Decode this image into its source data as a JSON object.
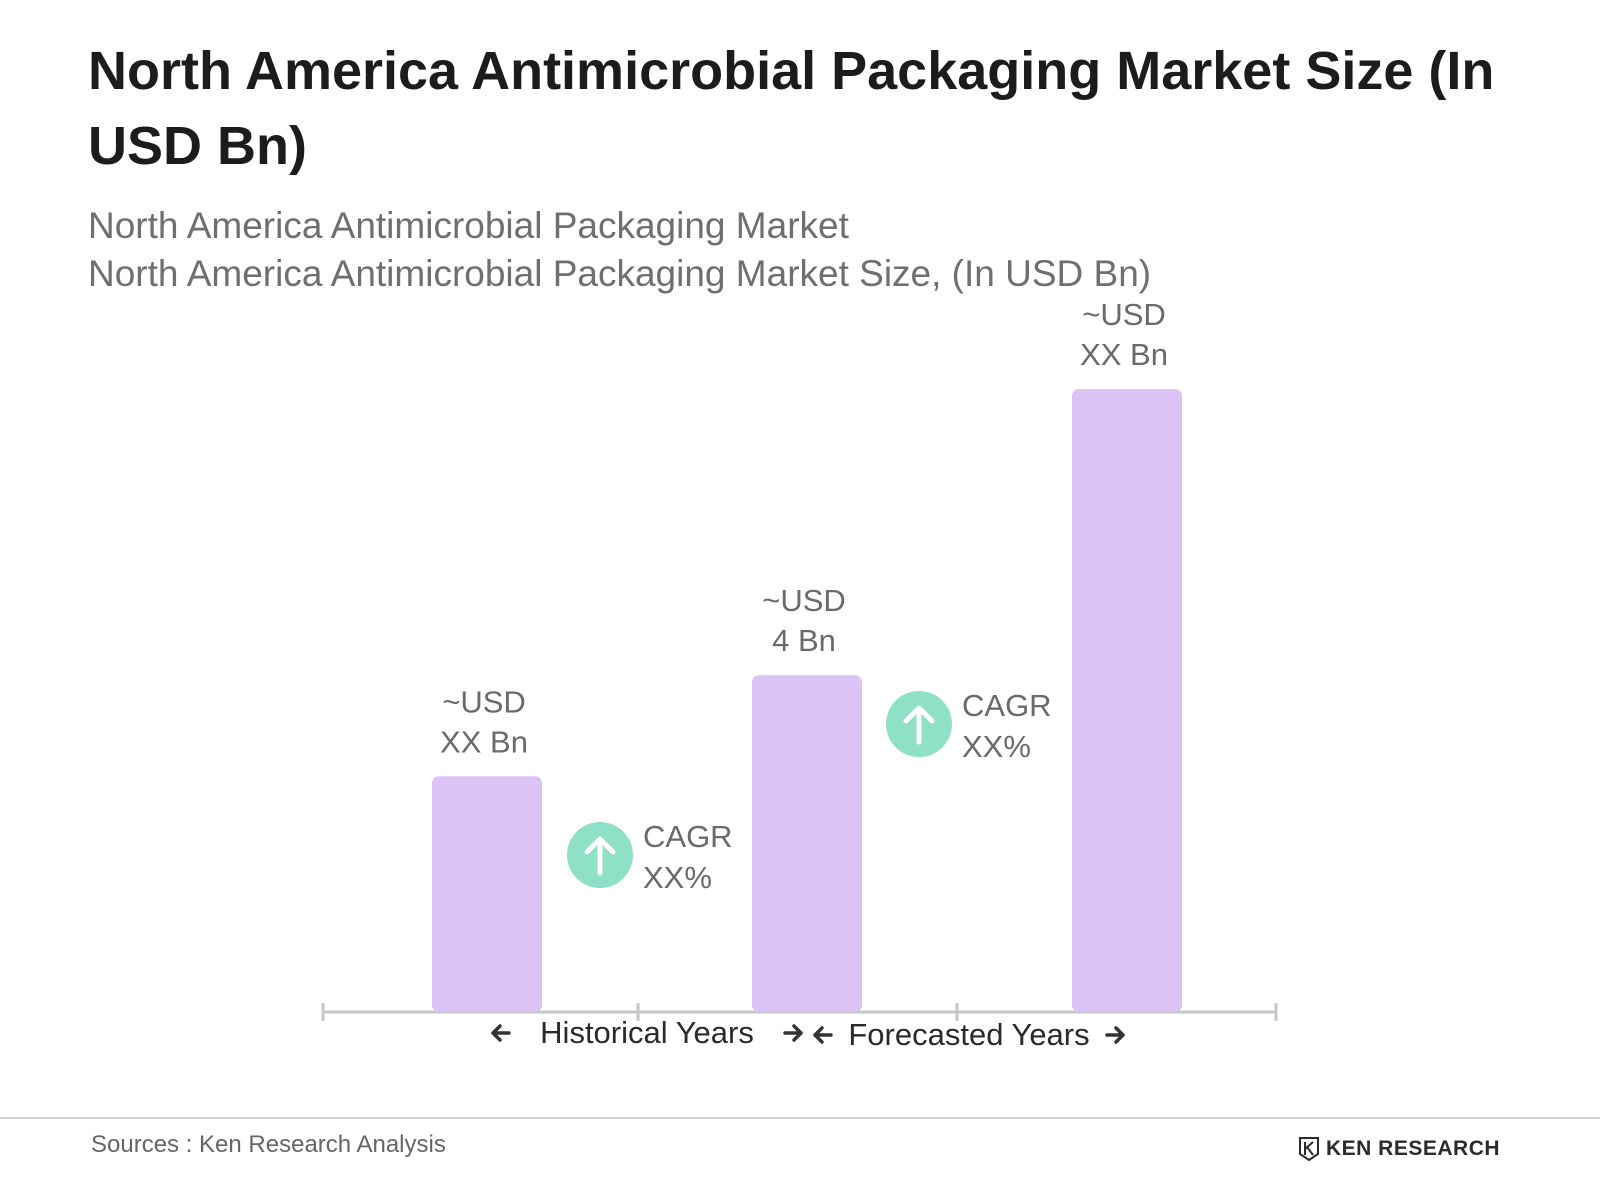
{
  "title": "North America Antimicrobial Packaging Market Size (In USD Bn)",
  "subtitle_line1": "North America Antimicrobial Packaging Market",
  "subtitle_line2": "North America Antimicrobial Packaging Market Size, (In USD Bn)",
  "chart_data": {
    "type": "bar",
    "categories": [
      "",
      "",
      ""
    ],
    "values": [
      2.8,
      4,
      7.4
    ],
    "data_labels": [
      [
        "~USD",
        "XX Bn"
      ],
      [
        "~USD",
        "4 Bn"
      ],
      [
        "~USD",
        "XX Bn"
      ]
    ],
    "cagr_markers": [
      [
        "CAGR",
        "XX%"
      ],
      [
        "CAGR",
        "XX%"
      ]
    ],
    "period_labels": [
      "Historical Years",
      "Forecasted Years"
    ],
    "bar_color": "#dcc3f6",
    "cagr_icon_color": "#8ee0c6",
    "axis_color": "#c8c8c8",
    "ylim": [
      0,
      7.4
    ],
    "grid": false
  },
  "footer": {
    "source": "Sources : Ken Research Analysis",
    "brand": "KEN RESEARCH"
  }
}
